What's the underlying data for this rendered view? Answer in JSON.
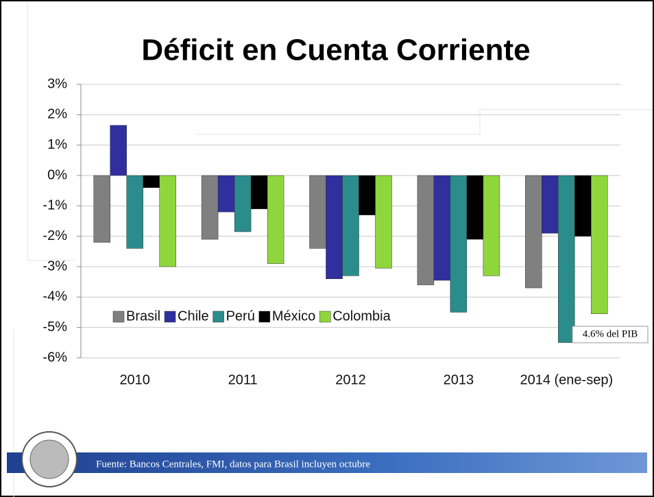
{
  "chart_data": {
    "type": "bar",
    "title": "Déficit en Cuenta Corriente",
    "categories": [
      "2010",
      "2011",
      "2012",
      "2013",
      "2014 (ene-sep)"
    ],
    "series": [
      {
        "name": "Brasil",
        "color": "#808080",
        "values": [
          -2.2,
          -2.1,
          -2.4,
          -3.6,
          -3.7
        ]
      },
      {
        "name": "Chile",
        "color": "#2f2f9e",
        "values": [
          1.65,
          -1.2,
          -3.4,
          -3.45,
          -1.9
        ]
      },
      {
        "name": "Perú",
        "color": "#2b8c8c",
        "values": [
          -2.4,
          -1.85,
          -3.3,
          -4.5,
          -5.5
        ]
      },
      {
        "name": "México",
        "color": "#000000",
        "values": [
          -0.4,
          -1.1,
          -1.3,
          -2.1,
          -2.0
        ]
      },
      {
        "name": "Colombia",
        "color": "#8fd63c",
        "values": [
          -3.0,
          -2.9,
          -3.05,
          -3.3,
          -4.55
        ]
      }
    ],
    "ylim": [
      -6,
      3
    ],
    "yticks": [
      {
        "value": 3,
        "label": "3%"
      },
      {
        "value": 2,
        "label": "2%"
      },
      {
        "value": 1,
        "label": "1%"
      },
      {
        "value": 0,
        "label": "0%"
      },
      {
        "value": -1,
        "label": "-1%"
      },
      {
        "value": -2,
        "label": "-2%"
      },
      {
        "value": -3,
        "label": "-3%"
      },
      {
        "value": -4,
        "label": "-4%"
      },
      {
        "value": -5,
        "label": "-5%"
      },
      {
        "value": -6,
        "label": "-6%"
      }
    ],
    "grid": true,
    "legend": "bottom-left",
    "annotation": "4.6% del PIB",
    "source": "Fuente: Bancos Centrales, FMI, datos para Brasil incluyen octubre"
  }
}
